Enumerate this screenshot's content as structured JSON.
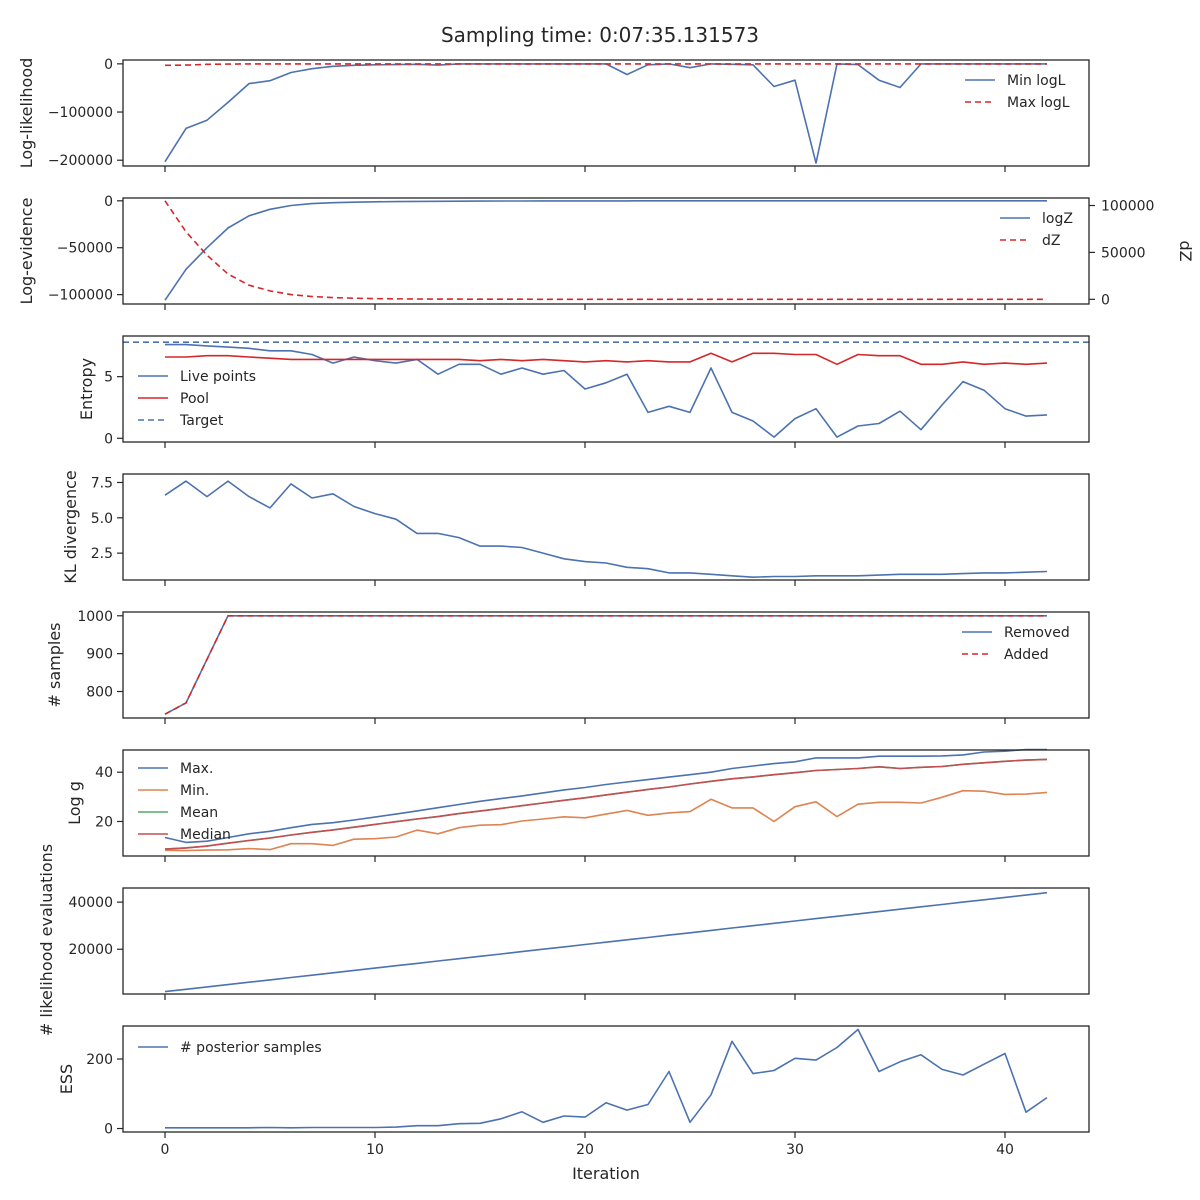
{
  "chart_data": {
    "type": "line",
    "title": "Sampling time: 0:07:35.131573",
    "xlabel": "Iteration",
    "xlim": [
      -2,
      44
    ],
    "xticks": [
      0,
      10,
      20,
      30,
      40
    ],
    "x": [
      0,
      1,
      2,
      3,
      4,
      5,
      6,
      7,
      8,
      9,
      10,
      11,
      12,
      13,
      14,
      15,
      16,
      17,
      18,
      19,
      20,
      21,
      22,
      23,
      24,
      25,
      26,
      27,
      28,
      29,
      30,
      31,
      32,
      33,
      34,
      35,
      36,
      37,
      38,
      39,
      40,
      41,
      42
    ],
    "grid": false,
    "panels": [
      {
        "ylabel": "Log-likelihood",
        "ylim": [
          -212000,
          8000
        ],
        "yticks": [
          0,
          -100000,
          -200000
        ],
        "ytick_labels": [
          "0",
          "−100000",
          "−200000"
        ],
        "legend": "top-right",
        "series": [
          {
            "name": "Min logL",
            "color": "#4c72b0",
            "dash": "solid",
            "values": [
              -203000,
              -134000,
              -117000,
              -80000,
              -41000,
              -35000,
              -18000,
              -10000,
              -5000,
              -3000,
              -2000,
              -1500,
              -1000,
              -2500,
              0,
              0,
              0,
              0,
              0,
              0,
              0,
              0,
              -22000,
              -2000,
              0,
              -8000,
              0,
              -1000,
              -2000,
              -47000,
              -34000,
              -206000,
              0,
              -1500,
              -34000,
              -49000,
              0,
              0,
              0,
              0,
              0,
              0,
              0
            ]
          },
          {
            "name": "Max logL",
            "color": "#d62728",
            "dash": "dashed",
            "values": [
              -3000,
              -2500,
              -1000,
              -500,
              0,
              0,
              0,
              0,
              0,
              0,
              0,
              0,
              0,
              0,
              0,
              0,
              0,
              0,
              0,
              0,
              0,
              0,
              0,
              0,
              0,
              0,
              0,
              0,
              0,
              0,
              0,
              0,
              0,
              0,
              0,
              0,
              0,
              0,
              0,
              0,
              0,
              0,
              0
            ]
          }
        ]
      },
      {
        "ylabel": "Log-evidence",
        "ylim": [
          -110000,
          3000
        ],
        "yticks": [
          0,
          -50000,
          -100000
        ],
        "ytick_labels": [
          "0",
          "−50000",
          "−100000"
        ],
        "ylabel2": "dZ",
        "ylim2": [
          -5000,
          108000
        ],
        "yticks2": [
          0,
          50000,
          100000
        ],
        "ytick_labels2": [
          "0",
          "50000",
          "100000"
        ],
        "legend": "top-right",
        "series": [
          {
            "name": "logZ",
            "color": "#4c72b0",
            "dash": "solid",
            "axis": "left",
            "values": [
              -106000,
              -73000,
              -50000,
              -29000,
              -16000,
              -9000,
              -5000,
              -3000,
              -2000,
              -1500,
              -1000,
              -800,
              -600,
              -500,
              -400,
              -300,
              -200,
              -150,
              -100,
              -80,
              -60,
              -50,
              -40,
              -30,
              -20,
              -15,
              -10,
              -8,
              -6,
              -5,
              -4,
              -3,
              -2,
              -2,
              -1,
              -1,
              -1,
              -1,
              0,
              0,
              0,
              0,
              0
            ]
          },
          {
            "name": "dZ",
            "color": "#d62728",
            "dash": "dashed",
            "axis": "right",
            "values": [
              105000,
              72000,
              47000,
              27000,
              15000,
              9000,
              5000,
              3000,
              1800,
              1200,
              800,
              500,
              350,
              250,
              180,
              130,
              100,
              80,
              60,
              50,
              40,
              30,
              25,
              20,
              15,
              12,
              10,
              8,
              6,
              5,
              4,
              3,
              3,
              2,
              2,
              1,
              1,
              1,
              1,
              1,
              1,
              0,
              0
            ]
          }
        ]
      },
      {
        "ylabel": "Entropy",
        "ylim": [
          -0.3,
          8.3
        ],
        "yticks": [
          0,
          5
        ],
        "ytick_labels": [
          "0",
          "5"
        ],
        "legend": "center-left",
        "series": [
          {
            "name": "Live points",
            "color": "#4c72b0",
            "dash": "solid",
            "values": [
              7.6,
              7.6,
              7.5,
              7.4,
              7.3,
              7.1,
              7.1,
              6.8,
              6.1,
              6.6,
              6.3,
              6.1,
              6.4,
              5.2,
              6.0,
              6.0,
              5.2,
              5.7,
              5.2,
              5.5,
              4.0,
              4.5,
              5.2,
              2.1,
              2.6,
              2.1,
              5.7,
              2.1,
              1.4,
              0.1,
              1.6,
              2.4,
              0.1,
              1.0,
              1.2,
              2.2,
              0.7,
              2.7,
              4.6,
              3.9,
              2.4,
              1.8,
              1.9
            ]
          },
          {
            "name": "Pool",
            "color": "#d62728",
            "dash": "solid",
            "values": [
              6.6,
              6.6,
              6.7,
              6.7,
              6.6,
              6.5,
              6.4,
              6.4,
              6.4,
              6.4,
              6.4,
              6.4,
              6.4,
              6.4,
              6.4,
              6.3,
              6.4,
              6.3,
              6.4,
              6.3,
              6.2,
              6.3,
              6.2,
              6.3,
              6.2,
              6.2,
              6.9,
              6.2,
              6.9,
              6.9,
              6.8,
              6.8,
              6.0,
              6.8,
              6.7,
              6.7,
              6.0,
              6.0,
              6.2,
              6.0,
              6.1,
              6.0,
              6.1
            ]
          },
          {
            "name": "Target",
            "color": "#4c72b0",
            "dash": "dashed",
            "constant": 7.8
          }
        ]
      },
      {
        "ylabel": "KL divergence",
        "ylim": [
          0.6,
          8.1
        ],
        "yticks": [
          2.5,
          5.0,
          7.5
        ],
        "ytick_labels": [
          "2.5",
          "5.0",
          "7.5"
        ],
        "legend": "none",
        "series": [
          {
            "name": "",
            "color": "#4c72b0",
            "dash": "solid",
            "values": [
              6.6,
              7.6,
              6.5,
              7.6,
              6.5,
              5.7,
              7.4,
              6.4,
              6.7,
              5.8,
              5.3,
              4.9,
              3.9,
              3.9,
              3.6,
              3.0,
              3.0,
              2.9,
              2.5,
              2.1,
              1.9,
              1.8,
              1.5,
              1.4,
              1.1,
              1.1,
              1.0,
              0.9,
              0.8,
              0.85,
              0.85,
              0.9,
              0.9,
              0.9,
              0.95,
              1.0,
              1.0,
              1.0,
              1.05,
              1.1,
              1.1,
              1.15,
              1.2
            ]
          }
        ]
      },
      {
        "ylabel": "# samples",
        "ylim": [
          730,
          1010
        ],
        "yticks": [
          800,
          900,
          1000
        ],
        "ytick_labels": [
          "800",
          "900",
          "1000"
        ],
        "legend": "top-right",
        "series": [
          {
            "name": "Removed",
            "color": "#4c72b0",
            "dash": "solid",
            "values": [
              740,
              770,
              885,
              1000,
              1000,
              1000,
              1000,
              1000,
              1000,
              1000,
              1000,
              1000,
              1000,
              1000,
              1000,
              1000,
              1000,
              1000,
              1000,
              1000,
              1000,
              1000,
              1000,
              1000,
              1000,
              1000,
              1000,
              1000,
              1000,
              1000,
              1000,
              1000,
              1000,
              1000,
              1000,
              1000,
              1000,
              1000,
              1000,
              1000,
              1000,
              1000,
              1000
            ]
          },
          {
            "name": "Added",
            "color": "#d62728",
            "dash": "dashed",
            "values": [
              740,
              770,
              885,
              1000,
              1000,
              1000,
              1000,
              1000,
              1000,
              1000,
              1000,
              1000,
              1000,
              1000,
              1000,
              1000,
              1000,
              1000,
              1000,
              1000,
              1000,
              1000,
              1000,
              1000,
              1000,
              1000,
              1000,
              1000,
              1000,
              1000,
              1000,
              1000,
              1000,
              1000,
              1000,
              1000,
              1000,
              1000,
              1000,
              1000,
              1000,
              1000,
              1000
            ]
          }
        ]
      },
      {
        "ylabel": "Log g",
        "ylim": [
          6,
          49
        ],
        "yticks": [
          20,
          40
        ],
        "ytick_labels": [
          "20",
          "40"
        ],
        "legend": "center-left",
        "series": [
          {
            "name": "Max.",
            "color": "#4c72b0",
            "dash": "solid",
            "values": [
              13.5,
              11.5,
              12.0,
              13.5,
              15.0,
              16.0,
              17.5,
              18.8,
              19.5,
              20.6,
              21.8,
              23.0,
              24.3,
              25.6,
              26.9,
              28.2,
              29.3,
              30.4,
              31.6,
              32.8,
              33.8,
              35.0,
              36.0,
              37.0,
              38.0,
              39.0,
              40.0,
              41.5,
              42.5,
              43.5,
              44.2,
              45.8,
              45.8,
              45.8,
              46.5,
              46.5,
              46.5,
              46.6,
              47.0,
              48.2,
              48.5,
              49.2,
              49.2
            ]
          },
          {
            "name": "Min.",
            "color": "#dd8452",
            "dash": "solid",
            "values": [
              8.3,
              8.2,
              8.4,
              8.5,
              9.0,
              8.6,
              11.0,
              11.0,
              10.3,
              12.8,
              13.0,
              13.7,
              16.5,
              15.0,
              17.5,
              18.5,
              18.7,
              20.2,
              21.0,
              21.9,
              21.5,
              23.0,
              24.5,
              22.5,
              23.5,
              24.0,
              29.0,
              25.5,
              25.5,
              20.0,
              26.0,
              28.0,
              22.0,
              27.0,
              27.8,
              27.8,
              27.5,
              29.8,
              32.5,
              32.3,
              31.0,
              31.1,
              31.8
            ]
          },
          {
            "name": "Mean",
            "color": "#55a868",
            "dash": "solid",
            "values": [
              8.8,
              9.3,
              10.0,
              11.2,
              12.3,
              13.3,
              14.5,
              15.6,
              16.6,
              17.7,
              18.8,
              19.9,
              21.0,
              22.0,
              23.2,
              24.2,
              25.3,
              26.4,
              27.5,
              28.6,
              29.6,
              30.8,
              31.9,
              33.0,
              34.0,
              35.2,
              36.3,
              37.3,
              38.1,
              39.0,
              39.8,
              40.7,
              41.1,
              41.5,
              42.2,
              41.5,
              42.0,
              42.3,
              43.2,
              43.8,
              44.4,
              44.9,
              45.2
            ]
          },
          {
            "name": "Median",
            "color": "#c44e52",
            "dash": "solid",
            "values": [
              8.8,
              9.3,
              10.0,
              11.2,
              12.3,
              13.3,
              14.5,
              15.6,
              16.6,
              17.7,
              18.8,
              19.9,
              21.0,
              22.0,
              23.2,
              24.2,
              25.3,
              26.4,
              27.5,
              28.6,
              29.6,
              30.8,
              31.9,
              33.0,
              34.0,
              35.2,
              36.3,
              37.3,
              38.1,
              39.0,
              39.8,
              40.7,
              41.1,
              41.5,
              42.2,
              41.5,
              42.0,
              42.3,
              43.2,
              43.8,
              44.4,
              44.9,
              45.2
            ]
          }
        ]
      },
      {
        "ylabel": "# likelihood evaluations",
        "ylim": [
          1000,
          46000
        ],
        "yticks": [
          20000,
          40000
        ],
        "ytick_labels": [
          "20000",
          "40000"
        ],
        "legend": "none",
        "series": [
          {
            "name": "",
            "color": "#4c72b0",
            "dash": "solid",
            "values": [
              2000,
              3000,
              4000,
              5000,
              6000,
              7000,
              8000,
              9000,
              10000,
              11000,
              12000,
              13000,
              14000,
              15000,
              16000,
              17000,
              18000,
              19000,
              20000,
              21000,
              22000,
              23000,
              24000,
              25000,
              26000,
              27000,
              28000,
              29000,
              30000,
              31000,
              32000,
              33000,
              34000,
              35000,
              36000,
              37000,
              38000,
              39000,
              40000,
              41000,
              42000,
              43000,
              44000
            ]
          }
        ]
      },
      {
        "ylabel": "ESS",
        "ylim": [
          -10,
          295
        ],
        "yticks": [
          0,
          200
        ],
        "ytick_labels": [
          "0",
          "200"
        ],
        "legend": "top-left",
        "series": [
          {
            "name": "# posterior samples",
            "color": "#4c72b0",
            "dash": "solid",
            "values": [
              2,
              2,
              2,
              2,
              2,
              3,
              2,
              3,
              3,
              3,
              3,
              4,
              8,
              8,
              14,
              15,
              28,
              48,
              18,
              36,
              33,
              74,
              53,
              69,
              164,
              18,
              97,
              251,
              158,
              167,
              202,
              197,
              233,
              285,
              164,
              192,
              212,
              170,
              154,
              185,
              216,
              47,
              89
            ]
          }
        ]
      }
    ]
  }
}
